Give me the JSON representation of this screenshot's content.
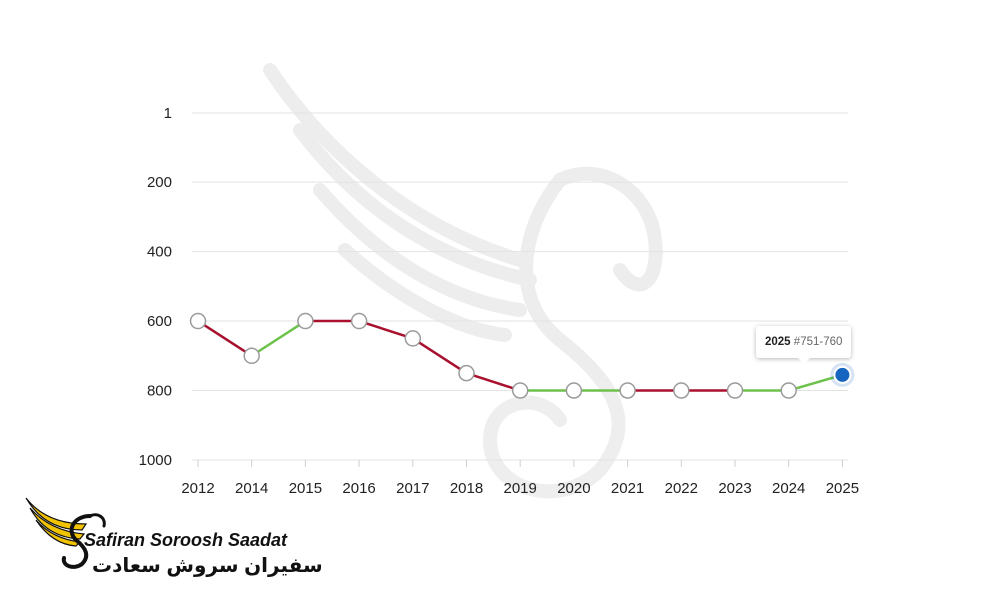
{
  "chart_data": {
    "type": "line",
    "title": "",
    "xlabel": "",
    "ylabel": "",
    "y_inverted": true,
    "ylim": [
      1,
      1000
    ],
    "y_ticks": [
      "1",
      "200",
      "400",
      "600",
      "800",
      "1000"
    ],
    "y_tick_values": [
      1,
      200,
      400,
      600,
      800,
      1000
    ],
    "categories": [
      "2012",
      "2014",
      "2015",
      "2016",
      "2017",
      "2018",
      "2019",
      "2020",
      "2021",
      "2022",
      "2023",
      "2024",
      "2025"
    ],
    "series": [
      {
        "values": [
          600,
          700,
          600,
          600,
          650,
          750,
          800,
          800,
          800,
          800,
          800,
          800,
          755
        ]
      }
    ],
    "segment_colors": [
      "#a8102e",
      "#6cc24a",
      "#a8102e",
      "#a8102e",
      "#a8102e",
      "#a8102e",
      "#6cc24a",
      "#6cc24a",
      "#a8102e",
      "#a8102e",
      "#6cc24a",
      "#6cc24a"
    ],
    "highlight_color": "#1565c0",
    "grid": true,
    "tooltip": {
      "year": "2025",
      "rank": "#751-760"
    }
  },
  "logo": {
    "name_en": "Safiran Soroosh Saadat",
    "name_fa": "سفیران سروش سعادت",
    "icon": "winged-s-logo-icon",
    "watermark_icon": "winged-s-watermark-icon",
    "accent_color": "#f2c300"
  }
}
